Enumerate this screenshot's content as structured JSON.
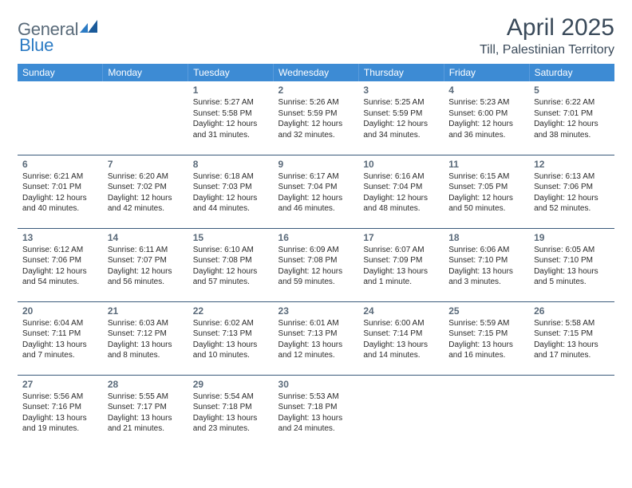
{
  "logo": {
    "word1": "General",
    "word2": "Blue"
  },
  "title": "April 2025",
  "location": "Till, Palestinian Territory",
  "day_names": [
    "Sunday",
    "Monday",
    "Tuesday",
    "Wednesday",
    "Thursday",
    "Friday",
    "Saturday"
  ],
  "colors": {
    "header_bg": "#3d8bd4",
    "header_text": "#ffffff",
    "rule": "#3a5a7a",
    "body_text": "#2a2a2a",
    "muted": "#5a6a7a",
    "logo_gray": "#5a6b7a",
    "logo_blue": "#2c7bc4"
  },
  "weeks": [
    [
      {},
      {},
      {
        "d": "1",
        "rise": "Sunrise: 5:27 AM",
        "set": "Sunset: 5:58 PM",
        "dl1": "Daylight: 12 hours",
        "dl2": "and 31 minutes."
      },
      {
        "d": "2",
        "rise": "Sunrise: 5:26 AM",
        "set": "Sunset: 5:59 PM",
        "dl1": "Daylight: 12 hours",
        "dl2": "and 32 minutes."
      },
      {
        "d": "3",
        "rise": "Sunrise: 5:25 AM",
        "set": "Sunset: 5:59 PM",
        "dl1": "Daylight: 12 hours",
        "dl2": "and 34 minutes."
      },
      {
        "d": "4",
        "rise": "Sunrise: 5:23 AM",
        "set": "Sunset: 6:00 PM",
        "dl1": "Daylight: 12 hours",
        "dl2": "and 36 minutes."
      },
      {
        "d": "5",
        "rise": "Sunrise: 6:22 AM",
        "set": "Sunset: 7:01 PM",
        "dl1": "Daylight: 12 hours",
        "dl2": "and 38 minutes."
      }
    ],
    [
      {
        "d": "6",
        "rise": "Sunrise: 6:21 AM",
        "set": "Sunset: 7:01 PM",
        "dl1": "Daylight: 12 hours",
        "dl2": "and 40 minutes."
      },
      {
        "d": "7",
        "rise": "Sunrise: 6:20 AM",
        "set": "Sunset: 7:02 PM",
        "dl1": "Daylight: 12 hours",
        "dl2": "and 42 minutes."
      },
      {
        "d": "8",
        "rise": "Sunrise: 6:18 AM",
        "set": "Sunset: 7:03 PM",
        "dl1": "Daylight: 12 hours",
        "dl2": "and 44 minutes."
      },
      {
        "d": "9",
        "rise": "Sunrise: 6:17 AM",
        "set": "Sunset: 7:04 PM",
        "dl1": "Daylight: 12 hours",
        "dl2": "and 46 minutes."
      },
      {
        "d": "10",
        "rise": "Sunrise: 6:16 AM",
        "set": "Sunset: 7:04 PM",
        "dl1": "Daylight: 12 hours",
        "dl2": "and 48 minutes."
      },
      {
        "d": "11",
        "rise": "Sunrise: 6:15 AM",
        "set": "Sunset: 7:05 PM",
        "dl1": "Daylight: 12 hours",
        "dl2": "and 50 minutes."
      },
      {
        "d": "12",
        "rise": "Sunrise: 6:13 AM",
        "set": "Sunset: 7:06 PM",
        "dl1": "Daylight: 12 hours",
        "dl2": "and 52 minutes."
      }
    ],
    [
      {
        "d": "13",
        "rise": "Sunrise: 6:12 AM",
        "set": "Sunset: 7:06 PM",
        "dl1": "Daylight: 12 hours",
        "dl2": "and 54 minutes."
      },
      {
        "d": "14",
        "rise": "Sunrise: 6:11 AM",
        "set": "Sunset: 7:07 PM",
        "dl1": "Daylight: 12 hours",
        "dl2": "and 56 minutes."
      },
      {
        "d": "15",
        "rise": "Sunrise: 6:10 AM",
        "set": "Sunset: 7:08 PM",
        "dl1": "Daylight: 12 hours",
        "dl2": "and 57 minutes."
      },
      {
        "d": "16",
        "rise": "Sunrise: 6:09 AM",
        "set": "Sunset: 7:08 PM",
        "dl1": "Daylight: 12 hours",
        "dl2": "and 59 minutes."
      },
      {
        "d": "17",
        "rise": "Sunrise: 6:07 AM",
        "set": "Sunset: 7:09 PM",
        "dl1": "Daylight: 13 hours",
        "dl2": "and 1 minute."
      },
      {
        "d": "18",
        "rise": "Sunrise: 6:06 AM",
        "set": "Sunset: 7:10 PM",
        "dl1": "Daylight: 13 hours",
        "dl2": "and 3 minutes."
      },
      {
        "d": "19",
        "rise": "Sunrise: 6:05 AM",
        "set": "Sunset: 7:10 PM",
        "dl1": "Daylight: 13 hours",
        "dl2": "and 5 minutes."
      }
    ],
    [
      {
        "d": "20",
        "rise": "Sunrise: 6:04 AM",
        "set": "Sunset: 7:11 PM",
        "dl1": "Daylight: 13 hours",
        "dl2": "and 7 minutes."
      },
      {
        "d": "21",
        "rise": "Sunrise: 6:03 AM",
        "set": "Sunset: 7:12 PM",
        "dl1": "Daylight: 13 hours",
        "dl2": "and 8 minutes."
      },
      {
        "d": "22",
        "rise": "Sunrise: 6:02 AM",
        "set": "Sunset: 7:13 PM",
        "dl1": "Daylight: 13 hours",
        "dl2": "and 10 minutes."
      },
      {
        "d": "23",
        "rise": "Sunrise: 6:01 AM",
        "set": "Sunset: 7:13 PM",
        "dl1": "Daylight: 13 hours",
        "dl2": "and 12 minutes."
      },
      {
        "d": "24",
        "rise": "Sunrise: 6:00 AM",
        "set": "Sunset: 7:14 PM",
        "dl1": "Daylight: 13 hours",
        "dl2": "and 14 minutes."
      },
      {
        "d": "25",
        "rise": "Sunrise: 5:59 AM",
        "set": "Sunset: 7:15 PM",
        "dl1": "Daylight: 13 hours",
        "dl2": "and 16 minutes."
      },
      {
        "d": "26",
        "rise": "Sunrise: 5:58 AM",
        "set": "Sunset: 7:15 PM",
        "dl1": "Daylight: 13 hours",
        "dl2": "and 17 minutes."
      }
    ],
    [
      {
        "d": "27",
        "rise": "Sunrise: 5:56 AM",
        "set": "Sunset: 7:16 PM",
        "dl1": "Daylight: 13 hours",
        "dl2": "and 19 minutes."
      },
      {
        "d": "28",
        "rise": "Sunrise: 5:55 AM",
        "set": "Sunset: 7:17 PM",
        "dl1": "Daylight: 13 hours",
        "dl2": "and 21 minutes."
      },
      {
        "d": "29",
        "rise": "Sunrise: 5:54 AM",
        "set": "Sunset: 7:18 PM",
        "dl1": "Daylight: 13 hours",
        "dl2": "and 23 minutes."
      },
      {
        "d": "30",
        "rise": "Sunrise: 5:53 AM",
        "set": "Sunset: 7:18 PM",
        "dl1": "Daylight: 13 hours",
        "dl2": "and 24 minutes."
      },
      {},
      {},
      {}
    ]
  ]
}
